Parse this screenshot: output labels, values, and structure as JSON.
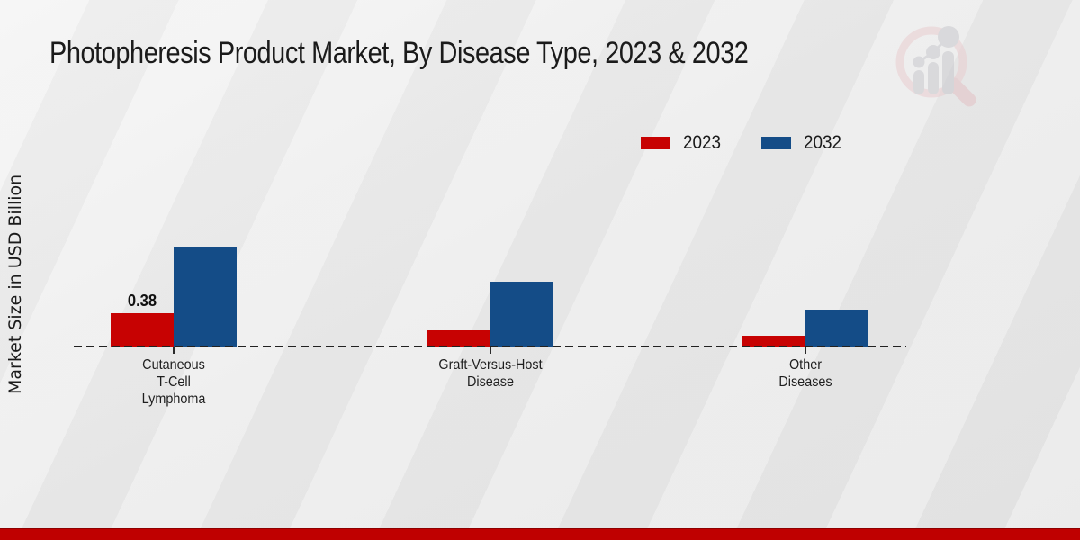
{
  "chart_data": {
    "type": "bar",
    "title": "Photopheresis Product Market, By Disease Type, 2023 & 2032",
    "ylabel": "Market Size in USD Billion",
    "xlabel": "",
    "categories": [
      "Cutaneous\nT-Cell\nLymphoma",
      "Graft-Versus-Host\nDisease",
      "Other\nDiseases"
    ],
    "series": [
      {
        "name": "2023",
        "color": "#c70202",
        "values": [
          0.38,
          0.19,
          0.13
        ]
      },
      {
        "name": "2032",
        "color": "#144c87",
        "values": [
          1.1,
          0.72,
          0.42
        ]
      }
    ],
    "data_labels": [
      {
        "series_index": 0,
        "category_index": 0,
        "text": "0.38"
      }
    ],
    "baseline": 0,
    "grid": false,
    "axis_style": "dashed-zero-line",
    "legend_position": "top-right"
  },
  "icons": {
    "logo": "bar-chart-magnifier-logo-icon"
  },
  "footer": {
    "accent_color": "#bf0000"
  }
}
